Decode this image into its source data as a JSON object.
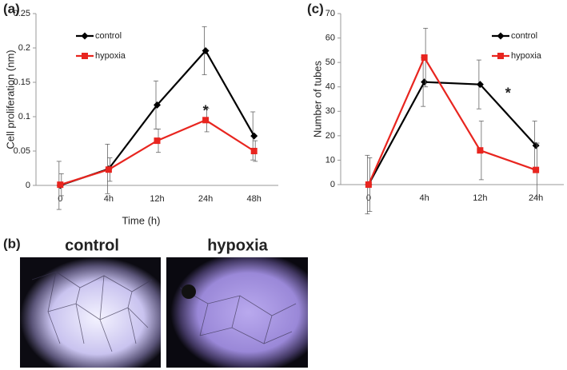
{
  "chart_data": [
    {
      "type": "line",
      "panel_label": "(a)",
      "y_label": "Cell proliferation (nm)",
      "x_label": "Time (h)",
      "categories": [
        "0",
        "4h",
        "12h",
        "24h",
        "48h"
      ],
      "series": [
        {
          "name": "control",
          "color": "#000000",
          "values": [
            0,
            0.024,
            0.117,
            0.196,
            0.072
          ],
          "errors": [
            0.035,
            0.036,
            0.035,
            0.035,
            0.035
          ]
        },
        {
          "name": "hypoxia",
          "color": "#e8251f",
          "values": [
            0.001,
            0.023,
            0.065,
            0.095,
            0.05
          ],
          "errors": [
            0.016,
            0.017,
            0.017,
            0.017,
            0.015
          ]
        }
      ],
      "ylim": [
        0,
        0.25
      ],
      "yticks": [
        0,
        0.05,
        0.1,
        0.15,
        0.2,
        0.25
      ],
      "legend": "upper left",
      "annotations": [
        {
          "text": "*",
          "category": 3,
          "y": 0.107
        }
      ]
    },
    {
      "type": "line",
      "panel_label": "(c)",
      "y_label": "Number of tubes",
      "categories": [
        "0",
        "4h",
        "12h",
        "24h"
      ],
      "series": [
        {
          "name": "control",
          "color": "#000000",
          "values": [
            0,
            42,
            41,
            16
          ],
          "errors": [
            12,
            10,
            10,
            10
          ]
        },
        {
          "name": "hypoxia",
          "color": "#e8251f",
          "values": [
            0,
            52,
            14,
            6
          ],
          "errors": [
            11,
            12,
            12,
            11
          ]
        }
      ],
      "ylim": [
        0,
        70
      ],
      "yticks": [
        0,
        10,
        20,
        30,
        40,
        50,
        60,
        70
      ],
      "legend": "upper right",
      "annotations": [
        {
          "text": "*",
          "category": 2.5,
          "y": 37
        }
      ]
    }
  ],
  "micrographs": {
    "panel_label": "(b)",
    "captions": [
      "control",
      "hypoxia"
    ]
  }
}
